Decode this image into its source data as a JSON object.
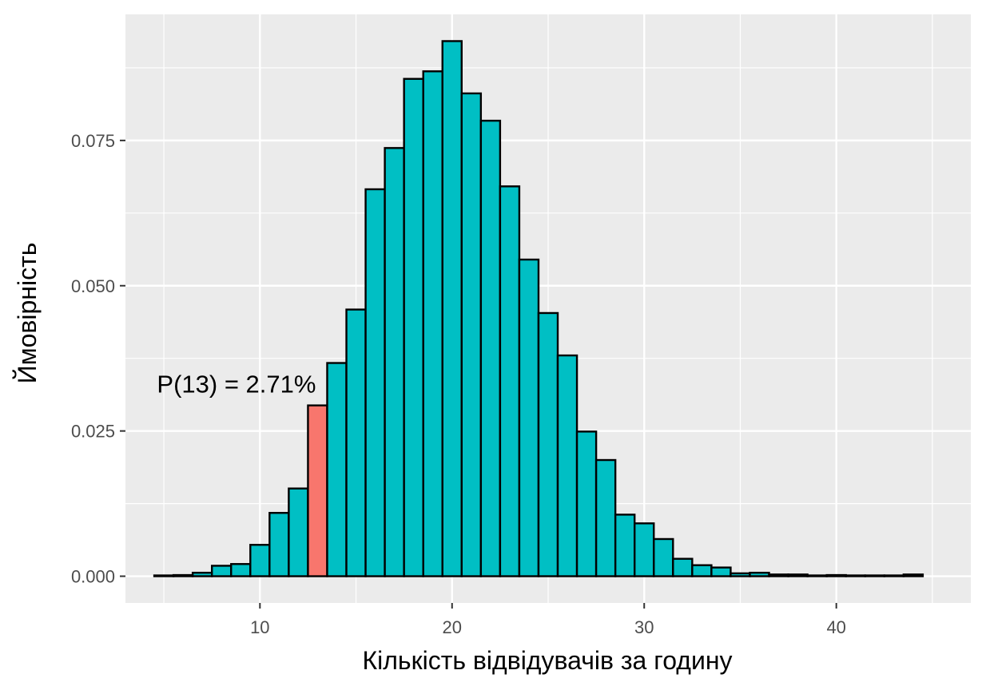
{
  "chart_data": {
    "type": "bar",
    "x": [
      5,
      6,
      7,
      8,
      9,
      10,
      11,
      12,
      13,
      14,
      15,
      16,
      17,
      18,
      19,
      20,
      21,
      22,
      23,
      24,
      25,
      26,
      27,
      28,
      29,
      30,
      31,
      32,
      33,
      34,
      35,
      36,
      37,
      38,
      39,
      40,
      41,
      42,
      43,
      44
    ],
    "values": [
      0.0001,
      0.0002,
      0.0006,
      0.0018,
      0.0021,
      0.0054,
      0.0109,
      0.0151,
      0.0294,
      0.0367,
      0.0459,
      0.0666,
      0.0737,
      0.0856,
      0.0869,
      0.0921,
      0.0831,
      0.0784,
      0.0671,
      0.0545,
      0.0453,
      0.038,
      0.0249,
      0.02,
      0.0106,
      0.0091,
      0.0064,
      0.003,
      0.0019,
      0.0015,
      0.0005,
      0.0006,
      0.0003,
      0.0003,
      0.0001,
      0.0002,
      0.0001,
      0.0001,
      0.0001,
      0.0003
    ],
    "highlight_x": 13,
    "colors": {
      "bar": "#00bfc4",
      "highlight": "#f8766d",
      "panel": "#ebebeb",
      "grid": "#ffffff",
      "outline": "#000000"
    },
    "xlabel": "Кількість відвідувачів за годину",
    "ylabel": "Ймовірність",
    "xlim": [
      3,
      47
    ],
    "ylim": [
      -0.0046,
      0.0967
    ],
    "x_ticks": [
      10,
      20,
      30,
      40
    ],
    "x_tick_labels": [
      "10",
      "20",
      "30",
      "40"
    ],
    "y_ticks": [
      0,
      0.025,
      0.05,
      0.075
    ],
    "y_tick_labels": [
      "0.000",
      "0.025",
      "0.050",
      "0.075"
    ],
    "annotation": "P(13) = 2.71%",
    "grid": true,
    "legend": "none"
  }
}
